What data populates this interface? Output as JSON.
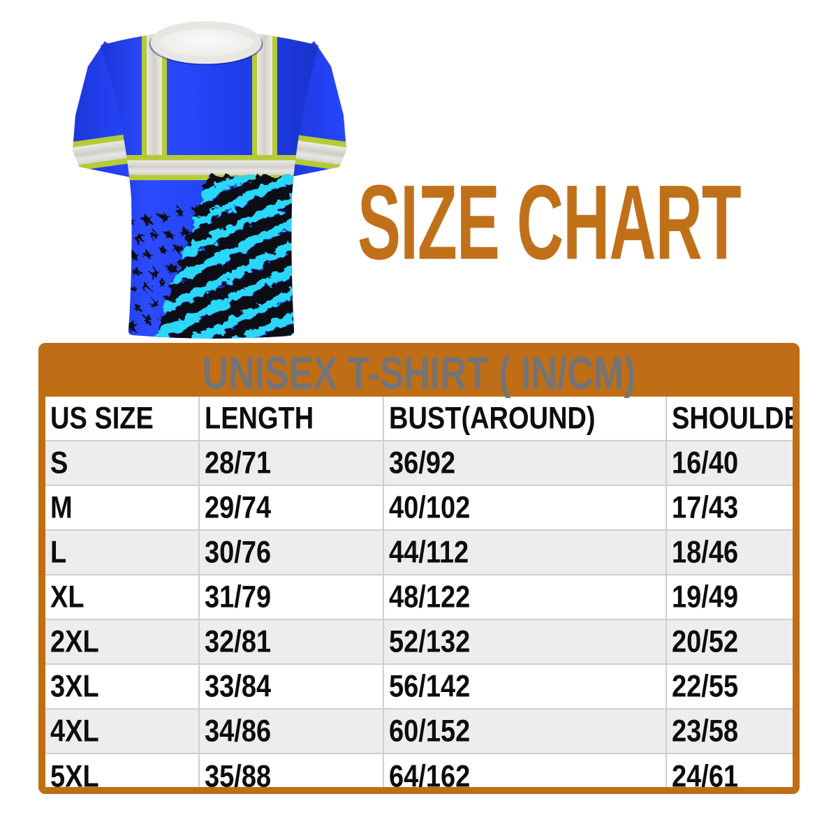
{
  "title": "SIZE CHART",
  "hero": {
    "image": "hi-vis-safety-tshirt-with-distressed-american-flag",
    "shirt_colors": {
      "body_blue": "#2342f2",
      "hi_vis_lime": "#b5cb35",
      "reflective_silver": "#dedcd6",
      "collar_white": "#f3f2ef",
      "flag_cyan": "#2bd7f7",
      "flag_black": "#0b0b12"
    }
  },
  "table": {
    "title": "UNISEX T-SHIRT ( IN/CM)",
    "columns": [
      "US SIZE",
      "LENGTH",
      "BUST(AROUND)",
      "SHOULDER"
    ],
    "rows": [
      [
        "S",
        "28/71",
        "36/92",
        "16/40"
      ],
      [
        "M",
        "29/74",
        "40/102",
        "17/43"
      ],
      [
        "L",
        "30/76",
        "44/112",
        "18/46"
      ],
      [
        "XL",
        "31/79",
        "48/122",
        "19/49"
      ],
      [
        "2XL",
        "32/81",
        "52/132",
        "20/52"
      ],
      [
        "3XL",
        "33/84",
        "56/142",
        "22/55"
      ],
      [
        "4XL",
        "34/86",
        "60/152",
        "23/58"
      ],
      [
        "5XL",
        "35/88",
        "64/162",
        "24/61"
      ]
    ]
  },
  "chart_data": {
    "type": "table",
    "title": "UNISEX T-SHIRT ( IN/CM)",
    "columns": [
      "US SIZE",
      "LENGTH",
      "BUST(AROUND)",
      "SHOULDER"
    ],
    "rows": [
      [
        "S",
        "28/71",
        "36/92",
        "16/40"
      ],
      [
        "M",
        "29/74",
        "40/102",
        "17/43"
      ],
      [
        "L",
        "30/76",
        "44/112",
        "18/46"
      ],
      [
        "XL",
        "31/79",
        "48/122",
        "19/49"
      ],
      [
        "2XL",
        "32/81",
        "52/132",
        "20/52"
      ],
      [
        "3XL",
        "33/84",
        "56/142",
        "22/55"
      ],
      [
        "4XL",
        "34/86",
        "60/152",
        "23/58"
      ],
      [
        "5XL",
        "35/88",
        "64/162",
        "24/61"
      ]
    ]
  },
  "colors": {
    "accent_orange": "#bf6e15",
    "heading_orange": "#c1701a",
    "table_title_gray": "#747478",
    "row_alt_gray": "#ededed",
    "divider_gray": "#cfcfcf",
    "cell_text": "#0d0d0d"
  }
}
